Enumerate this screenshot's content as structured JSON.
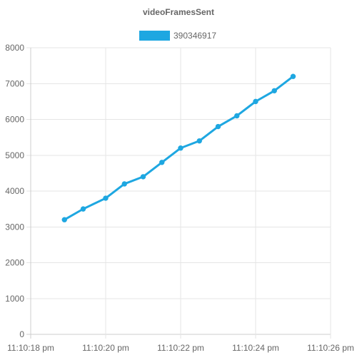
{
  "chart_data": {
    "type": "line",
    "title": "videoFramesSent",
    "legend": {
      "placement": "top-center"
    },
    "grid": true,
    "colors": {
      "series": "#1ea7e1",
      "grid": "#e5e5e5",
      "axis": "#cccccc",
      "text": "#666666",
      "title": "#666666"
    },
    "xlim": [
      "11:10:18 pm",
      "11:10:26 pm"
    ],
    "x_ticks": [
      "11:10:18 pm",
      "11:10:20 pm",
      "11:10:22 pm",
      "11:10:24 pm",
      "11:10:26 pm"
    ],
    "ylim": [
      0,
      8000
    ],
    "y_ticks": [
      "0",
      "1000",
      "2000",
      "3000",
      "4000",
      "5000",
      "6000",
      "7000",
      "8000"
    ],
    "series": [
      {
        "name": "390346917",
        "x": [
          "11:10:18.9 pm",
          "11:10:19.4 pm",
          "11:10:20.0 pm",
          "11:10:20.5 pm",
          "11:10:21.0 pm",
          "11:10:21.5 pm",
          "11:10:22.0 pm",
          "11:10:22.5 pm",
          "11:10:23.0 pm",
          "11:10:23.5 pm",
          "11:10:24.0 pm",
          "11:10:24.5 pm",
          "11:10:25.0 pm"
        ],
        "values": [
          3200,
          3500,
          3800,
          4200,
          4400,
          4800,
          5200,
          5400,
          5800,
          6100,
          6500,
          6800,
          7200
        ]
      }
    ]
  }
}
